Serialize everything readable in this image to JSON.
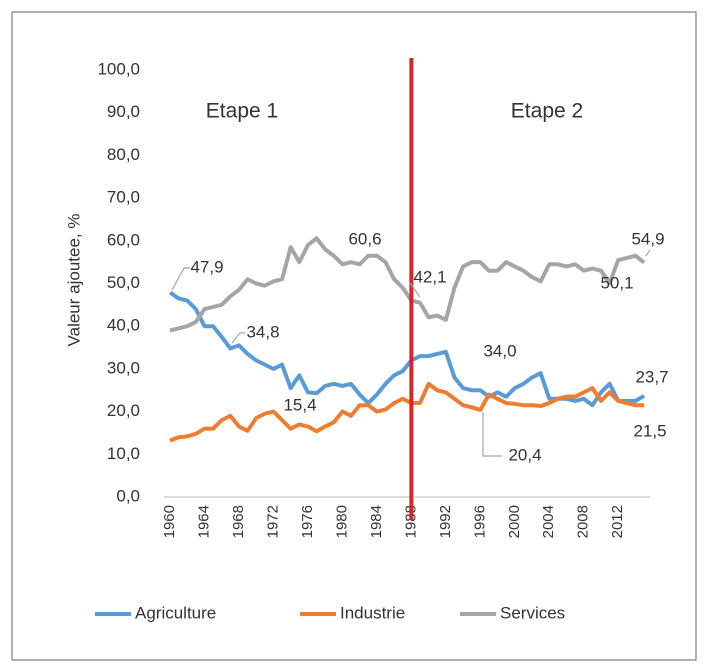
{
  "chart_data": {
    "type": "line",
    "y_axis_label": "Valeur ajoutee, %",
    "annotations": [
      "Etape 1",
      "Etape 2"
    ],
    "divider_category": "1988",
    "divider_color": "#d62728",
    "categories": [
      "1960",
      null,
      null,
      null,
      "1964",
      null,
      null,
      null,
      "1968",
      null,
      null,
      null,
      "1972",
      null,
      null,
      null,
      "1976",
      null,
      null,
      null,
      "1980",
      null,
      null,
      null,
      "1984",
      null,
      null,
      null,
      "1988",
      null,
      null,
      null,
      "1992",
      null,
      null,
      null,
      "1996",
      null,
      null,
      null,
      "2000",
      null,
      null,
      null,
      "2004",
      null,
      null,
      null,
      "2008",
      null,
      null,
      null,
      "2012",
      null,
      null,
      null
    ],
    "ylim": [
      0,
      100
    ],
    "yticks": [
      {
        "value": 0,
        "label": "0,0"
      },
      {
        "value": 10,
        "label": "10,0"
      },
      {
        "value": 20,
        "label": "20,0"
      },
      {
        "value": 30,
        "label": "30,0"
      },
      {
        "value": 40,
        "label": "40,0"
      },
      {
        "value": 50,
        "label": "50,0"
      },
      {
        "value": 60,
        "label": "60,0"
      },
      {
        "value": 70,
        "label": "70,0"
      },
      {
        "value": 80,
        "label": "80,0"
      },
      {
        "value": 90,
        "label": "90,0"
      },
      {
        "value": 100,
        "label": "100,0"
      }
    ],
    "legend": "bottom",
    "series": [
      {
        "name": "Agriculture",
        "color": "#5b9bd5",
        "values": [
          47.9,
          46.5,
          46,
          44,
          40,
          40,
          37.5,
          34.8,
          35.5,
          33.5,
          32,
          31,
          30,
          31,
          25.5,
          28.5,
          24.5,
          24.3,
          26,
          26.5,
          26,
          26.5,
          24,
          22,
          24,
          26.5,
          28.5,
          29.5,
          32,
          33,
          33,
          33.5,
          34.0,
          28,
          25.5,
          25,
          25,
          23.5,
          24.5,
          23.5,
          25.5,
          26.5,
          28,
          29,
          23,
          23,
          23,
          22.5,
          23,
          21.5,
          24.5,
          26.5,
          22.5,
          22.5,
          22.5,
          23.7
        ],
        "value_labels": [
          "47,9",
          null,
          null,
          null,
          null,
          null,
          null,
          "34,8",
          null,
          null,
          null,
          null,
          null,
          null,
          null,
          null,
          null,
          null,
          null,
          null,
          null,
          null,
          null,
          null,
          null,
          null,
          null,
          null,
          null,
          null,
          null,
          null,
          "34,0",
          null,
          null,
          null,
          null,
          null,
          null,
          null,
          null,
          null,
          null,
          null,
          null,
          null,
          null,
          null,
          null,
          null,
          null,
          null,
          null,
          null,
          null,
          "23,7"
        ]
      },
      {
        "name": "Industrie",
        "color": "#ed7d31",
        "values": [
          13.2,
          14,
          14.2,
          14.8,
          16,
          16,
          18,
          19,
          16.5,
          15.5,
          18.5,
          19.5,
          20,
          18,
          16,
          17,
          16.5,
          15.4,
          16.5,
          17.5,
          20,
          19,
          21.5,
          21.5,
          20,
          20.5,
          22,
          23,
          22,
          22,
          26.5,
          25,
          24.5,
          23,
          21.5,
          21,
          20.4,
          24,
          23,
          22,
          21.8,
          21.5,
          21.5,
          21.3,
          22,
          23,
          23.5,
          23.5,
          24.5,
          25.5,
          22.5,
          24.5,
          22.5,
          22,
          21.5,
          21.5
        ],
        "value_labels": [
          null,
          null,
          null,
          null,
          null,
          null,
          null,
          null,
          null,
          null,
          null,
          null,
          null,
          null,
          null,
          null,
          null,
          "15,4",
          null,
          null,
          null,
          null,
          null,
          null,
          null,
          null,
          null,
          null,
          null,
          null,
          null,
          null,
          null,
          null,
          null,
          null,
          "20,4",
          null,
          null,
          null,
          null,
          null,
          null,
          null,
          null,
          null,
          null,
          null,
          null,
          null,
          null,
          null,
          null,
          null,
          null,
          "21,5"
        ]
      },
      {
        "name": "Services",
        "color": "#a5a5a5",
        "values": [
          39,
          39.5,
          40,
          41,
          44,
          44.5,
          45,
          47,
          48.5,
          51,
          50,
          49.5,
          50.5,
          51,
          58.5,
          55,
          59,
          60.6,
          58,
          56.5,
          54.5,
          55,
          54.5,
          56.5,
          56.5,
          55,
          51,
          49,
          46,
          45.5,
          42.1,
          42.5,
          41.5,
          49,
          54,
          55,
          55,
          53,
          53,
          55,
          54,
          53,
          51.5,
          50.5,
          54.5,
          54.5,
          54,
          54.5,
          53,
          53.5,
          53,
          50.1,
          55.5,
          56,
          56.5,
          54.9
        ],
        "value_labels": [
          null,
          null,
          null,
          null,
          null,
          null,
          null,
          null,
          null,
          null,
          null,
          null,
          null,
          null,
          null,
          null,
          null,
          "60,6",
          null,
          null,
          null,
          null,
          null,
          null,
          null,
          null,
          null,
          null,
          null,
          null,
          "42,1",
          null,
          null,
          null,
          null,
          null,
          null,
          null,
          null,
          null,
          null,
          null,
          null,
          null,
          null,
          null,
          null,
          null,
          null,
          null,
          null,
          "50,1",
          null,
          null,
          null,
          "54,9"
        ]
      }
    ]
  }
}
